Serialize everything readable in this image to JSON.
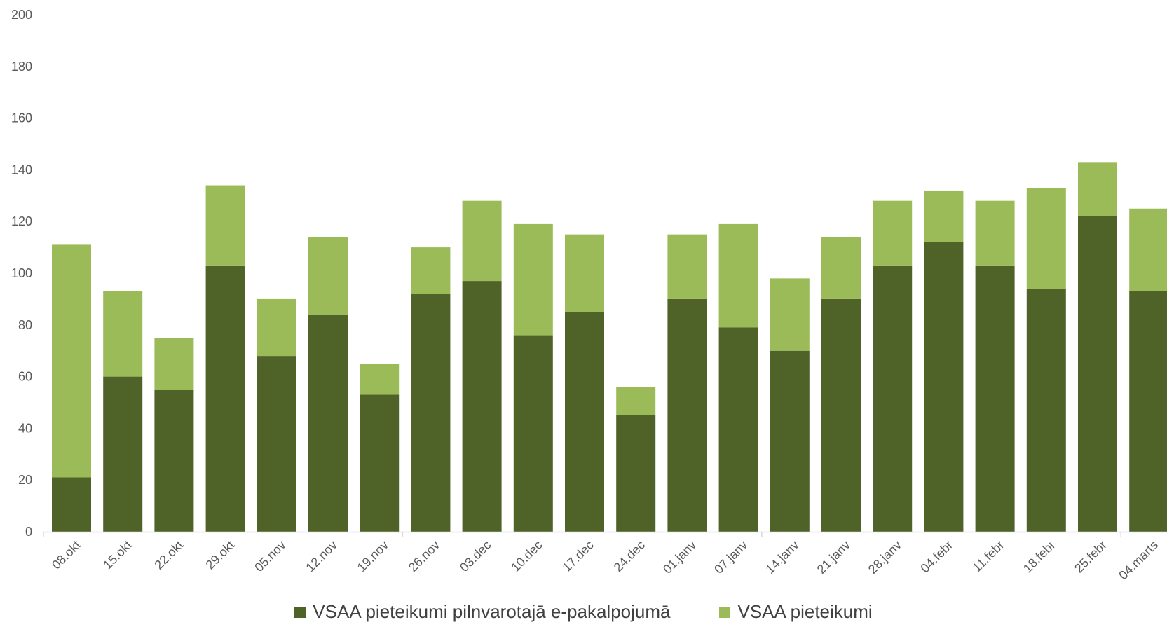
{
  "chart_data": {
    "type": "bar",
    "stacked": true,
    "categories": [
      "08.okt",
      "15.okt",
      "22.okt",
      "29.okt",
      "05.nov",
      "12.nov",
      "19.nov",
      "26.nov",
      "03.dec",
      "10.dec",
      "17.dec",
      "24.dec",
      "01.janv",
      "07.janv",
      "14.janv",
      "21.janv",
      "28.janv",
      "04.febr",
      "11.febr",
      "18.febr",
      "25.febr",
      "04.marts"
    ],
    "series": [
      {
        "name": "VSAA pieteikumi pilnvarotajā e-pakalpojumā",
        "color": "#4f6228",
        "values": [
          21,
          60,
          55,
          103,
          68,
          84,
          53,
          92,
          97,
          76,
          85,
          45,
          90,
          79,
          70,
          90,
          103,
          112,
          103,
          94,
          122,
          93
        ]
      },
      {
        "name": "VSAA pieteikumi",
        "color": "#9bbb59",
        "values": [
          90,
          33,
          20,
          31,
          22,
          30,
          12,
          18,
          31,
          43,
          30,
          11,
          25,
          40,
          28,
          24,
          25,
          20,
          25,
          39,
          21,
          32
        ]
      }
    ],
    "ylim": [
      0,
      200
    ],
    "yticks": [
      "0",
      "20",
      "40",
      "60",
      "80",
      "100",
      "120",
      "140",
      "160",
      "180",
      "200"
    ],
    "grid": false,
    "legend_position": "bottom",
    "title": "",
    "xlabel": "",
    "ylabel": ""
  }
}
